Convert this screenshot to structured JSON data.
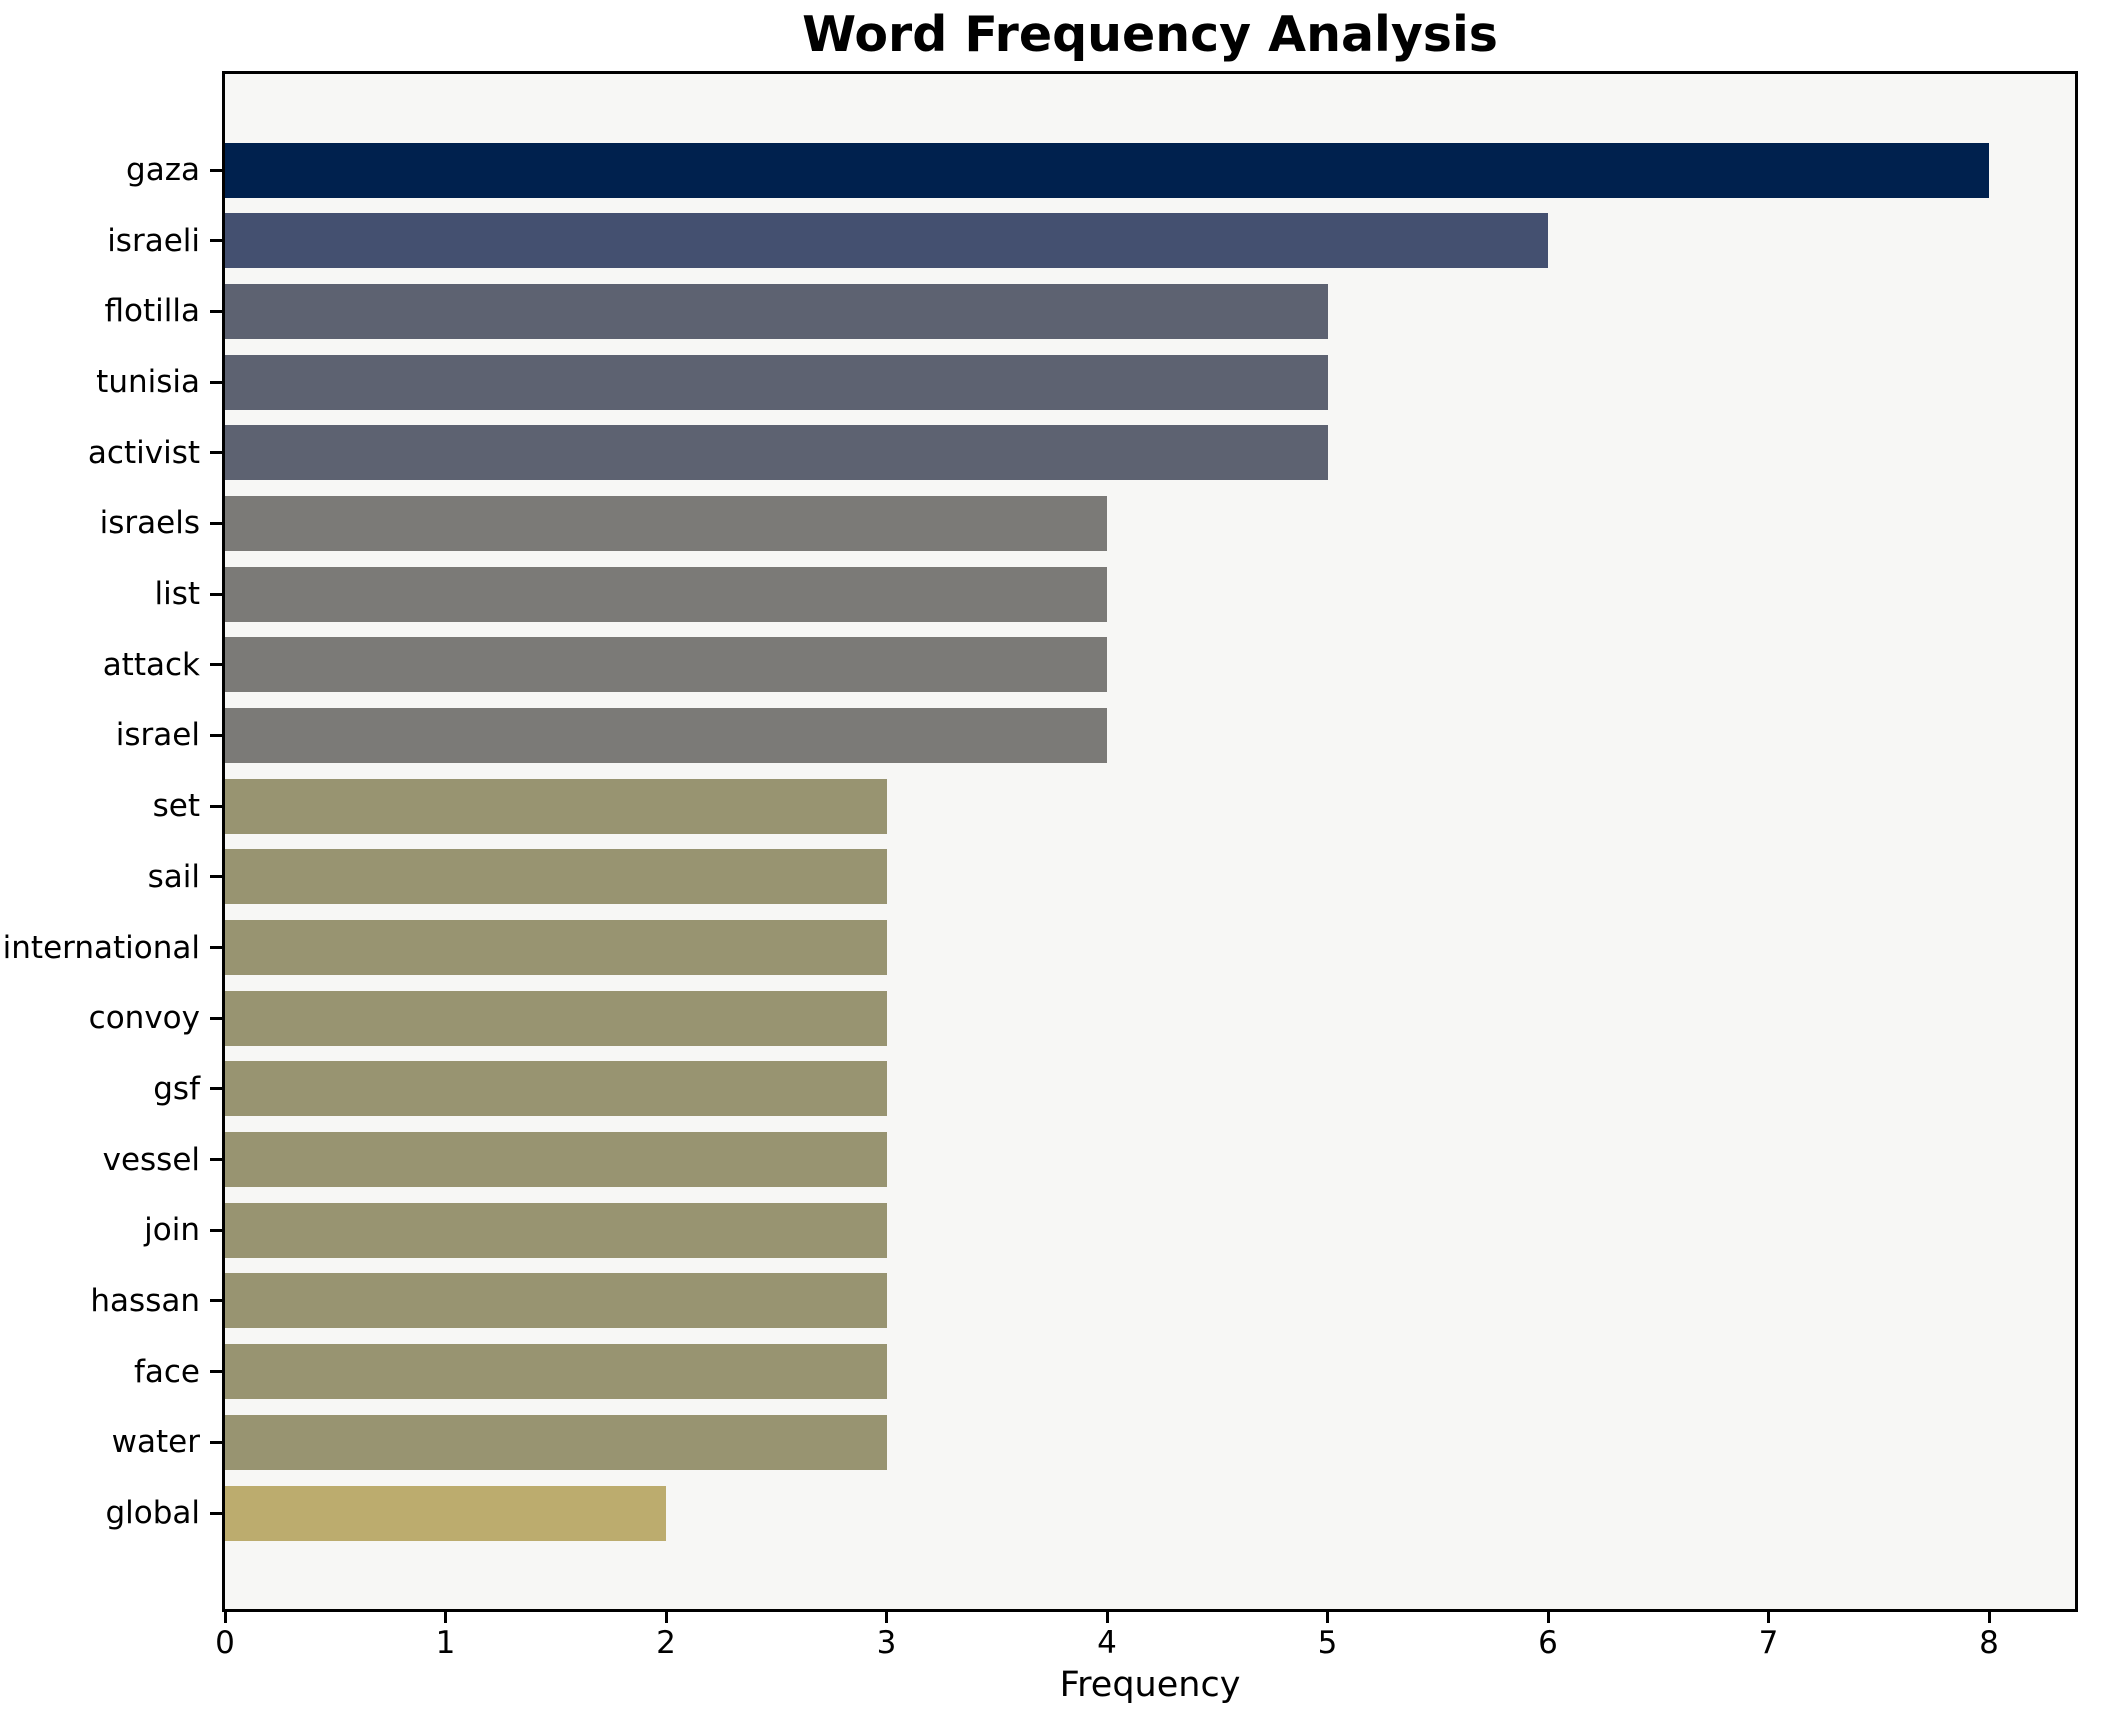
{
  "chart_data": {
    "type": "bar",
    "orientation": "horizontal",
    "title": "Word Frequency Analysis",
    "xlabel": "Frequency",
    "ylabel": "",
    "categories": [
      "gaza",
      "israeli",
      "flotilla",
      "tunisia",
      "activist",
      "israels",
      "list",
      "attack",
      "israel",
      "set",
      "sail",
      "international",
      "convoy",
      "gsf",
      "vessel",
      "join",
      "hassan",
      "face",
      "water",
      "global"
    ],
    "values": [
      8,
      6,
      5,
      5,
      5,
      4,
      4,
      4,
      4,
      3,
      3,
      3,
      3,
      3,
      3,
      3,
      3,
      3,
      3,
      2
    ],
    "bar_colors": [
      "#00214e",
      "#445070",
      "#5d6271",
      "#5d6271",
      "#5d6271",
      "#7b7a77",
      "#7b7a77",
      "#7b7a77",
      "#7b7a77",
      "#989471",
      "#989471",
      "#989471",
      "#989471",
      "#989471",
      "#989471",
      "#989471",
      "#989471",
      "#989471",
      "#989471",
      "#bcac6e"
    ],
    "xticks": [
      "0",
      "1",
      "2",
      "3",
      "4",
      "5",
      "6",
      "7",
      "8"
    ],
    "xlim": [
      0,
      8.39
    ],
    "grid": false,
    "legend": false,
    "colors": {
      "plot_background": "#f7f7f5",
      "figure_background": "#ffffff",
      "axis": "#000000",
      "text": "#000000"
    }
  }
}
